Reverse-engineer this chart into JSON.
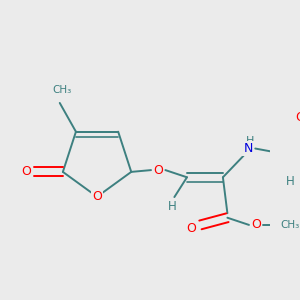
{
  "bg_color": "#ebebeb",
  "bond_color": "#3d8080",
  "atom_colors": {
    "O": "#ff0000",
    "N": "#0000dd",
    "C": "#3d8080",
    "H": "#3d8080"
  },
  "font_size": 9
}
